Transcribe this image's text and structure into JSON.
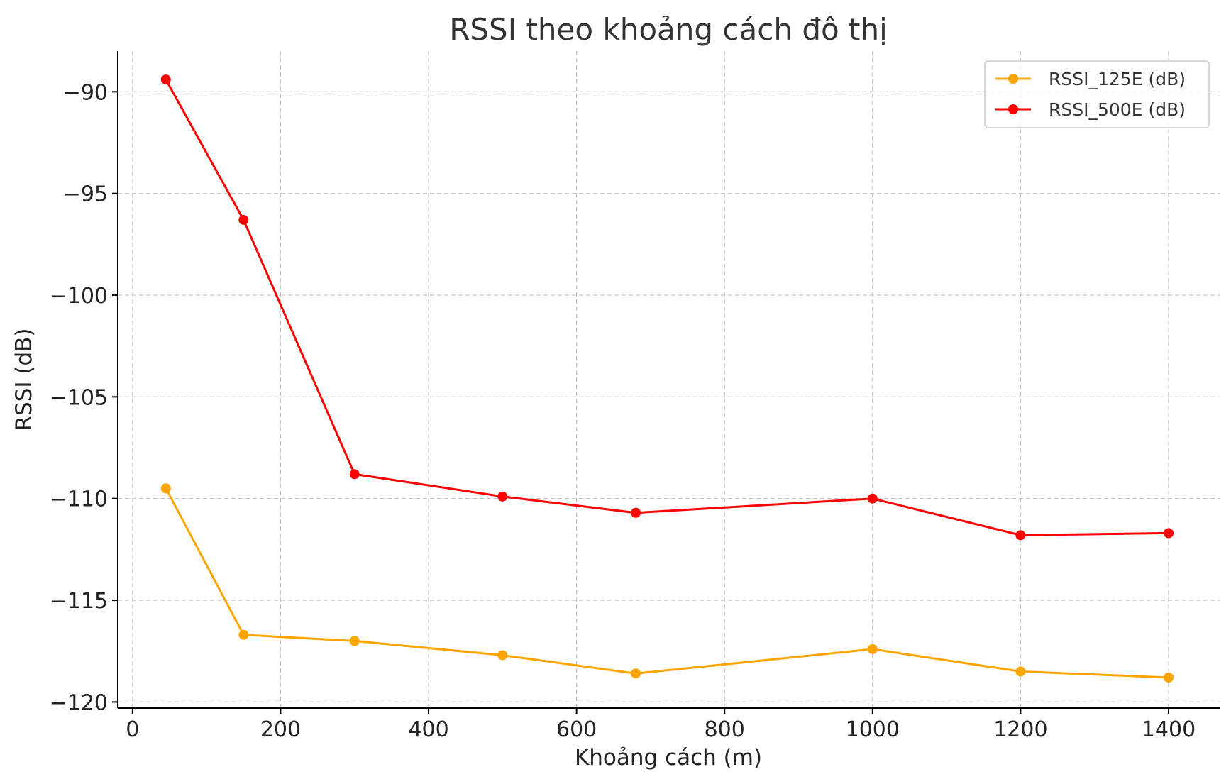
{
  "chart_data": {
    "type": "line",
    "title": "RSSI theo khoảng cách đô thị",
    "xlabel": "Khoảng cách (m)",
    "ylabel": "RSSI (dB)",
    "xlim": [
      -20,
      1470
    ],
    "ylim": [
      -120.3,
      -88
    ],
    "xticks": [
      0,
      200,
      400,
      600,
      800,
      1000,
      1200,
      1400
    ],
    "yticks": [
      -90,
      -95,
      -100,
      -105,
      -110,
      -115,
      -120
    ],
    "ytick_labels": [
      "−90",
      "−95",
      "−100",
      "−105",
      "−110",
      "−115",
      "−120"
    ],
    "grid": true,
    "legend_position": "top-right",
    "x": [
      45,
      150,
      300,
      500,
      680,
      1000,
      1200,
      1400
    ],
    "series": [
      {
        "name": "RSSI_125E (dB)",
        "color": "#FFA500",
        "values": [
          -109.5,
          -116.7,
          -117.0,
          -117.7,
          -118.6,
          -117.4,
          -118.5,
          -118.8
        ]
      },
      {
        "name": "RSSI_500E (dB)",
        "color": "#FF0000",
        "values": [
          -89.4,
          -96.3,
          -108.8,
          -109.9,
          -110.7,
          -110.0,
          -111.8,
          -111.7
        ]
      }
    ]
  }
}
